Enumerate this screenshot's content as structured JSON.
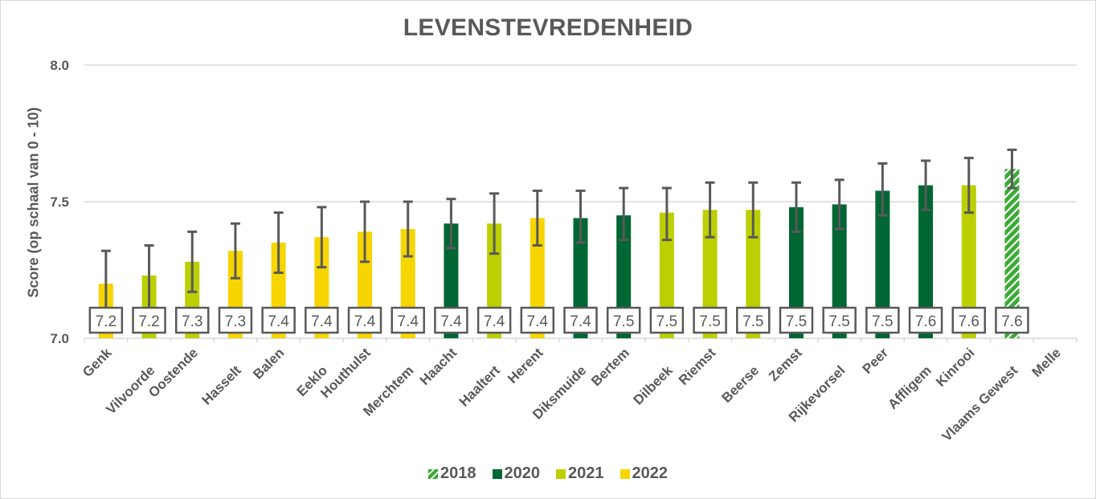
{
  "chart_data": {
    "type": "bar",
    "title": "LEVENSTEVREDENHEID",
    "xlabel": "",
    "ylabel": "Score (op schaal van 0 - 10)",
    "ylim": [
      7.0,
      8.0
    ],
    "yticks": [
      "7.0",
      "7.5",
      "8.0"
    ],
    "grid": true,
    "legend_position": "bottom",
    "categories": [
      "Genk",
      "Vilvoorde",
      "Oostende",
      "Hasselt",
      "Balen",
      "Eeklo",
      "Houthulst",
      "Merchtem",
      "Haacht",
      "Haaltert",
      "Herent",
      "Diksmuide",
      "Bertem",
      "Dilbeek",
      "Riemst",
      "Beerse",
      "Zemst",
      "Rijkevorsel",
      "Peer",
      "Affligem",
      "Kinrooi",
      "Vlaams Gewest",
      "Melle"
    ],
    "values": [
      7.2,
      7.23,
      7.28,
      7.32,
      7.35,
      7.37,
      7.39,
      7.4,
      7.42,
      7.42,
      7.44,
      7.44,
      7.45,
      7.46,
      7.47,
      7.47,
      7.48,
      7.49,
      7.54,
      7.56,
      7.56,
      7.62,
      null
    ],
    "error_low": [
      7.09,
      7.11,
      7.17,
      7.22,
      7.24,
      7.26,
      7.28,
      7.3,
      7.33,
      7.31,
      7.34,
      7.35,
      7.36,
      7.36,
      7.37,
      7.37,
      7.39,
      7.4,
      7.45,
      7.47,
      7.46,
      7.55,
      null
    ],
    "error_high": [
      7.32,
      7.34,
      7.39,
      7.42,
      7.46,
      7.48,
      7.5,
      7.5,
      7.51,
      7.53,
      7.54,
      7.54,
      7.55,
      7.55,
      7.57,
      7.57,
      7.57,
      7.58,
      7.64,
      7.65,
      7.66,
      7.69,
      null
    ],
    "data_labels": [
      "7.2",
      "7.2",
      "7.3",
      "7.3",
      "7.4",
      "7.4",
      "7.4",
      "7.4",
      "7.4",
      "7.4",
      "7.4",
      "7.4",
      "7.5",
      "7.5",
      "7.5",
      "7.5",
      "7.5",
      "7.5",
      "7.5",
      "7.6",
      "7.6",
      "7.6",
      null
    ],
    "years": [
      "2022",
      "2021",
      "2021",
      "2022",
      "2022",
      "2022",
      "2022",
      "2022",
      "2020",
      "2021",
      "2022",
      "2020",
      "2020",
      "2021",
      "2021",
      "2021",
      "2020",
      "2020",
      "2020",
      "2020",
      "2021",
      "2018",
      null
    ],
    "series": [
      {
        "name": "2018",
        "color": "#3aaa35",
        "pattern": "hatched"
      },
      {
        "name": "2020",
        "color": "#006633",
        "pattern": "solid"
      },
      {
        "name": "2021",
        "color": "#bccf00",
        "pattern": "solid"
      },
      {
        "name": "2022",
        "color": "#f7d500",
        "pattern": "solid"
      }
    ]
  }
}
